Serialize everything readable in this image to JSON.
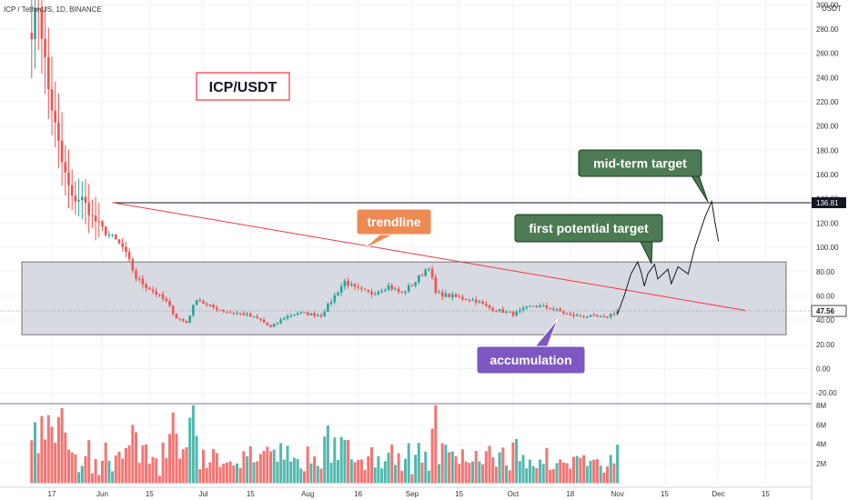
{
  "header": {
    "symbol_line": "ICP / TetherUS, 1D, BINANCE"
  },
  "chart_data": {
    "type": "candlestick",
    "symbol": "ICP / TetherUS",
    "timeframe": "1D",
    "exchange": "BINANCE",
    "y_axis": {
      "unit_label": "USDT",
      "ticks": [
        "300.00",
        "280.00",
        "260.00",
        "240.00",
        "220.00",
        "200.00",
        "180.00",
        "160.00",
        "140.00",
        "120.00",
        "100.00",
        "80.00",
        "60.00",
        "40.00",
        "20.00",
        "0.00",
        "-20.00"
      ],
      "range": [
        -25,
        305
      ]
    },
    "volume_axis": {
      "ticks": [
        "8M",
        "6M",
        "4M",
        "2M"
      ],
      "range": [
        0,
        8.5
      ]
    },
    "x_axis": {
      "ticks": [
        "17",
        "Jun",
        "15",
        "Jul",
        "15",
        "Aug",
        "16",
        "Sep",
        "15",
        "Oct",
        "18",
        "Nov",
        "15",
        "Dec",
        "15"
      ],
      "tick_dates": [
        "2021-05-17",
        "2021-06-01",
        "2021-06-15",
        "2021-07-01",
        "2021-07-15",
        "2021-08-01",
        "2021-08-16",
        "2021-09-01",
        "2021-09-15",
        "2021-10-01",
        "2021-10-18",
        "2021-11-01",
        "2021-11-15",
        "2021-12-01",
        "2021-12-15"
      ]
    },
    "price_markers": {
      "resistance_value": "136.81",
      "last_price": "47.56"
    },
    "colors": {
      "up": "#26a69a",
      "down": "#ef5350",
      "trendline": "#f23645",
      "zone_fill": "#d1d4dc"
    },
    "anchor_closes": [
      [
        "2021-05-11",
        280
      ],
      [
        "2021-05-13",
        300
      ],
      [
        "2021-05-16",
        230
      ],
      [
        "2021-05-18",
        200
      ],
      [
        "2021-05-20",
        170
      ],
      [
        "2021-05-23",
        140
      ],
      [
        "2021-05-26",
        140
      ],
      [
        "2021-05-29",
        125
      ],
      [
        "2021-06-01",
        115
      ],
      [
        "2021-06-04",
        108
      ],
      [
        "2021-06-07",
        100
      ],
      [
        "2021-06-09",
        88
      ],
      [
        "2021-06-11",
        75
      ],
      [
        "2021-06-14",
        68
      ],
      [
        "2021-06-17",
        62
      ],
      [
        "2021-06-20",
        55
      ],
      [
        "2021-06-23",
        42
      ],
      [
        "2021-06-26",
        38
      ],
      [
        "2021-06-29",
        58
      ],
      [
        "2021-07-02",
        52
      ],
      [
        "2021-07-08",
        47
      ],
      [
        "2021-07-13",
        45
      ],
      [
        "2021-07-18",
        40
      ],
      [
        "2021-07-21",
        34
      ],
      [
        "2021-07-25",
        42
      ],
      [
        "2021-07-29",
        46
      ],
      [
        "2021-08-05",
        44
      ],
      [
        "2021-08-09",
        60
      ],
      [
        "2021-08-12",
        72
      ],
      [
        "2021-08-15",
        66
      ],
      [
        "2021-08-20",
        62
      ],
      [
        "2021-08-25",
        68
      ],
      [
        "2021-08-29",
        62
      ],
      [
        "2021-09-02",
        72
      ],
      [
        "2021-09-06",
        85
      ],
      [
        "2021-09-08",
        62
      ],
      [
        "2021-09-12",
        60
      ],
      [
        "2021-09-20",
        56
      ],
      [
        "2021-09-24",
        50
      ],
      [
        "2021-10-01",
        45
      ],
      [
        "2021-10-07",
        52
      ],
      [
        "2021-10-12",
        50
      ],
      [
        "2021-10-18",
        44
      ],
      [
        "2021-10-24",
        43
      ],
      [
        "2021-10-28",
        42
      ],
      [
        "2021-11-01",
        47.56
      ]
    ],
    "annotations": [
      {
        "text": "ICP/USDT",
        "fill": "#ffffff",
        "border": "#f23645",
        "color": "#131722"
      },
      {
        "text": "mid-term target",
        "fill": "#4c7a52",
        "border": "#1a3a1e",
        "color": "#ffffff"
      },
      {
        "text": "trendline",
        "fill": "#ec8a52",
        "border": "#ffffff",
        "color": "#ffffff"
      },
      {
        "text": "first potential target",
        "fill": "#4c7a52",
        "border": "#1a3a1e",
        "color": "#ffffff"
      },
      {
        "text": "accumulation",
        "fill": "#7e57c2",
        "border": "#ffffff",
        "color": "#ffffff"
      }
    ]
  }
}
